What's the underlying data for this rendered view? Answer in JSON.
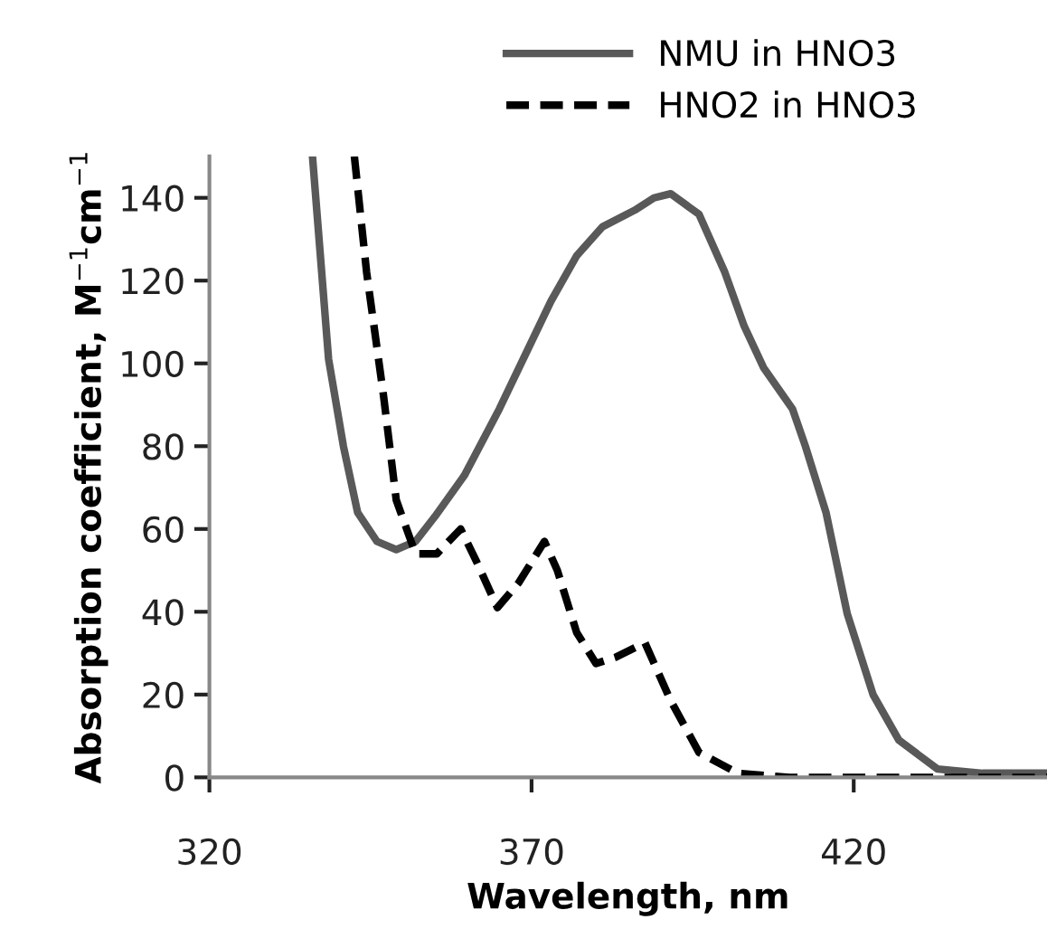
{
  "chart_data": {
    "type": "line",
    "xlabel": "Wavelength, nm",
    "ylabel": "Absorption coefficient, M$^{−1}$cm$^{−1}$",
    "xlim": [
      320,
      450
    ],
    "ylim": [
      0,
      150
    ],
    "xticks": [
      320,
      370,
      420
    ],
    "yticks": [
      0,
      20,
      40,
      60,
      80,
      100,
      120,
      140
    ],
    "grid": false,
    "legend": "top",
    "marker": "none",
    "series": [
      {
        "name": "NMU in HNO3",
        "color": "#595959",
        "line_style": "solid",
        "x": [
          336,
          338.5,
          340.8,
          343,
          346,
          349,
          352,
          355,
          359.6,
          365,
          373,
          377,
          381,
          386,
          389,
          391.6,
          396,
          400,
          403,
          406,
          410.5,
          412.5,
          415.7,
          419,
          423,
          427,
          433,
          440,
          450
        ],
        "values": [
          150,
          101,
          80,
          64,
          57,
          55,
          57,
          63,
          73,
          89,
          115,
          126,
          133,
          137,
          140,
          141,
          136,
          122,
          109,
          99,
          89,
          80,
          64,
          39.5,
          20,
          9,
          2,
          1,
          1
        ]
      },
      {
        "name": "HNO2 in HNO3",
        "color": "#000000",
        "line_style": "dashed",
        "x": [
          342.5,
          344.4,
          347,
          349,
          352,
          355.3,
          359,
          361.5,
          364.7,
          368,
          372,
          374,
          377,
          380,
          383,
          387.6,
          391.6,
          396,
          402,
          410,
          450
        ],
        "values": [
          150,
          122,
          92.5,
          67,
          54,
          54,
          60,
          52,
          41,
          47,
          57,
          50,
          35,
          27.5,
          29,
          32.5,
          18.5,
          6,
          1,
          0,
          0
        ]
      }
    ]
  }
}
